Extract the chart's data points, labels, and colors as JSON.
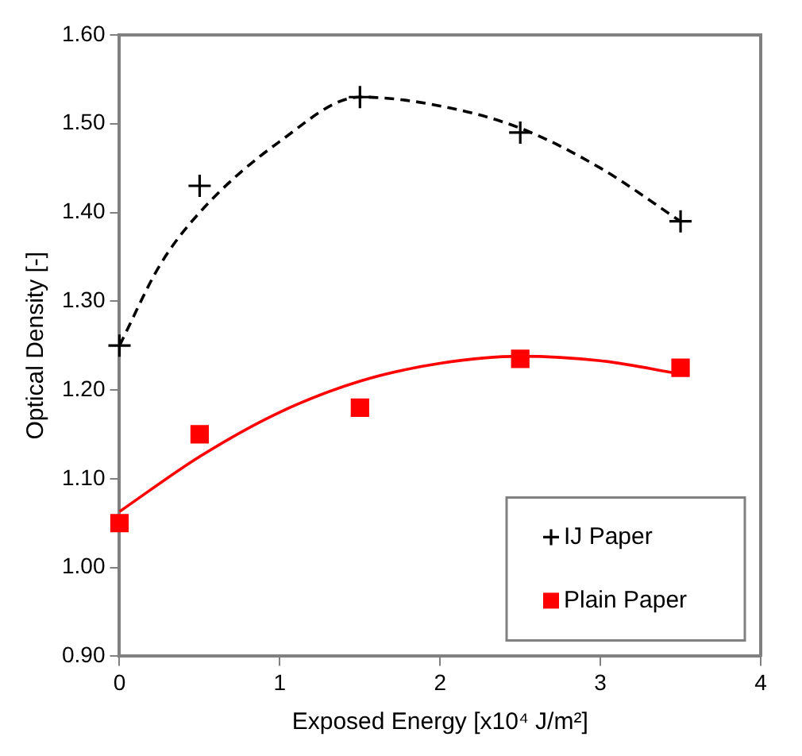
{
  "chart_data": {
    "type": "scatter",
    "xlabel": "Exposed Energy [x10⁴ J/m²]",
    "ylabel": "Optical Density [-]",
    "xlim": [
      0,
      4
    ],
    "xticks": [
      0,
      1,
      2,
      3,
      4
    ],
    "ylim": [
      0.9,
      1.6
    ],
    "yticks": [
      {
        "value": 0.9,
        "label": "0.90"
      },
      {
        "value": 1.0,
        "label": "1.00"
      },
      {
        "value": 1.1,
        "label": "1.10"
      },
      {
        "value": 1.2,
        "label": "1.20"
      },
      {
        "value": 1.3,
        "label": "1.30"
      },
      {
        "value": 1.4,
        "label": "1.40"
      },
      {
        "value": 1.5,
        "label": "1.50"
      },
      {
        "value": 1.6,
        "label": "1.60"
      }
    ],
    "grid": false,
    "legend": "bottom right",
    "series": [
      {
        "name": "IJ Paper",
        "marker": "cross",
        "color": "#000000",
        "x": [
          0,
          0.5,
          1.5,
          2.5,
          3.5
        ],
        "values": [
          1.25,
          1.43,
          1.53,
          1.49,
          1.39
        ]
      },
      {
        "name": "Plain Paper",
        "marker": "square",
        "color": "#ff0000",
        "x": [
          0,
          0.5,
          1.5,
          2.5,
          3.5
        ],
        "values": [
          1.05,
          1.15,
          1.18,
          1.235,
          1.225
        ]
      },
      {
        "type": "line",
        "line_style": "dashed",
        "marker": "none",
        "color": "#000000",
        "x": [
          0,
          0.25,
          0.5,
          1,
          1.5,
          2,
          2.5,
          3,
          3.5
        ],
        "values": [
          1.25,
          1.34,
          1.4,
          1.48,
          1.53,
          1.52,
          1.495,
          1.45,
          1.39
        ]
      },
      {
        "type": "line",
        "line_style": "solid",
        "marker": "none",
        "color": "#ff0000",
        "x": [
          0,
          0.5,
          1,
          1.5,
          2,
          2.5,
          3,
          3.5
        ],
        "values": [
          1.063,
          1.125,
          1.175,
          1.21,
          1.23,
          1.238,
          1.233,
          1.218
        ]
      }
    ]
  }
}
